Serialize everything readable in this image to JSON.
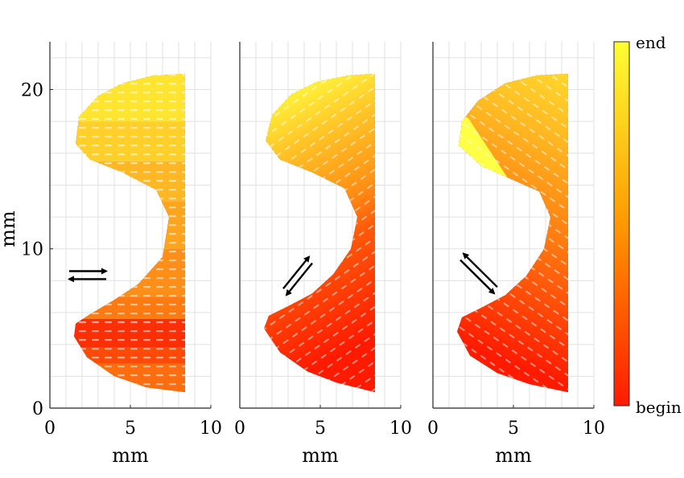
{
  "chart_data": {
    "type": "scatter",
    "x_axis_label": "mm",
    "y_axis_label": "mm",
    "xlim": [
      0,
      10
    ],
    "ylim": [
      0,
      23
    ],
    "x_ticks": [
      "0",
      "5",
      "10"
    ],
    "y_ticks": [
      "0",
      "10",
      "20"
    ],
    "colorbar": {
      "top_label": "end",
      "bottom_label": "begin",
      "colors": [
        "#ff1a00",
        "#ff9900",
        "#ffff33"
      ]
    },
    "panels": [
      {
        "name": "panel-1",
        "scan_direction": "horizontal",
        "shape_outline": [
          [
            8.4,
            1.0
          ],
          [
            6.0,
            1.3
          ],
          [
            4.0,
            2.0
          ],
          [
            2.3,
            3.2
          ],
          [
            1.5,
            4.5
          ],
          [
            1.6,
            5.3
          ],
          [
            2.5,
            5.9
          ],
          [
            4.0,
            6.8
          ],
          [
            5.5,
            7.8
          ],
          [
            7.0,
            9.5
          ],
          [
            7.4,
            12.0
          ],
          [
            6.6,
            13.7
          ],
          [
            4.5,
            14.8
          ],
          [
            2.5,
            15.6
          ],
          [
            1.6,
            16.6
          ],
          [
            1.8,
            18.3
          ],
          [
            3.0,
            19.6
          ],
          [
            4.5,
            20.4
          ],
          [
            6.5,
            20.9
          ],
          [
            8.4,
            21.0
          ]
        ],
        "color_bands": [
          {
            "y_from": 1.0,
            "y_to": 2.8,
            "color": "#ff6d0f"
          },
          {
            "y_from": 2.8,
            "y_to": 3.8,
            "color": "#ff4a08"
          },
          {
            "y_from": 3.8,
            "y_to": 5.6,
            "color": "#ff2e05"
          },
          {
            "y_from": 5.6,
            "y_to": 7.0,
            "color": "#ff7a10"
          },
          {
            "y_from": 7.0,
            "y_to": 10.0,
            "color": "#ff8f18"
          },
          {
            "y_from": 10.0,
            "y_to": 13.0,
            "color": "#ffa41e"
          },
          {
            "y_from": 13.0,
            "y_to": 15.5,
            "color": "#ffb824"
          },
          {
            "y_from": 15.5,
            "y_to": 18.0,
            "color": "#ffcf2a"
          },
          {
            "y_from": 18.0,
            "y_to": 21.0,
            "color": "#ffe52f"
          }
        ]
      },
      {
        "name": "panel-2",
        "scan_direction": "diagonal-up",
        "shape_outline": [
          [
            8.4,
            1.0
          ],
          [
            6.0,
            1.6
          ],
          [
            4.2,
            2.3
          ],
          [
            2.5,
            3.5
          ],
          [
            1.5,
            5.0
          ],
          [
            1.8,
            5.8
          ],
          [
            3.0,
            6.4
          ],
          [
            4.5,
            7.2
          ],
          [
            5.8,
            8.4
          ],
          [
            6.9,
            10.0
          ],
          [
            7.3,
            12.0
          ],
          [
            6.5,
            13.8
          ],
          [
            4.5,
            14.8
          ],
          [
            2.5,
            15.6
          ],
          [
            1.6,
            16.8
          ],
          [
            2.0,
            18.4
          ],
          [
            3.2,
            19.7
          ],
          [
            4.8,
            20.5
          ],
          [
            6.8,
            20.9
          ],
          [
            8.4,
            21.0
          ]
        ],
        "color_stops": [
          {
            "value": 0.0,
            "color": "#ff1a00"
          },
          {
            "value": 0.4,
            "color": "#ff5a0a"
          },
          {
            "value": 0.55,
            "color": "#ff9014"
          },
          {
            "value": 0.8,
            "color": "#ffc326"
          },
          {
            "value": 1.0,
            "color": "#fff23a"
          }
        ]
      },
      {
        "name": "panel-3",
        "scan_direction": "diagonal-down",
        "shape_outline": [
          [
            8.4,
            1.0
          ],
          [
            6.0,
            1.5
          ],
          [
            4.0,
            2.2
          ],
          [
            2.3,
            3.3
          ],
          [
            1.5,
            4.8
          ],
          [
            1.8,
            5.7
          ],
          [
            3.0,
            6.3
          ],
          [
            4.5,
            7.1
          ],
          [
            5.8,
            8.3
          ],
          [
            6.9,
            10.0
          ],
          [
            7.3,
            12.0
          ],
          [
            6.6,
            13.6
          ],
          [
            4.8,
            14.4
          ],
          [
            3.0,
            15.2
          ],
          [
            1.6,
            16.5
          ],
          [
            1.8,
            18.0
          ],
          [
            2.8,
            19.3
          ],
          [
            4.5,
            20.4
          ],
          [
            6.5,
            20.9
          ],
          [
            8.4,
            21.0
          ]
        ],
        "color_stops": [
          {
            "value": 0.0,
            "color": "#ff1a00"
          },
          {
            "value": 0.45,
            "color": "#ff7a10"
          },
          {
            "value": 0.8,
            "color": "#ffba22"
          },
          {
            "value": 0.86,
            "color": "#ffff46"
          },
          {
            "value": 1.0,
            "color": "#ffff46"
          }
        ]
      }
    ]
  }
}
